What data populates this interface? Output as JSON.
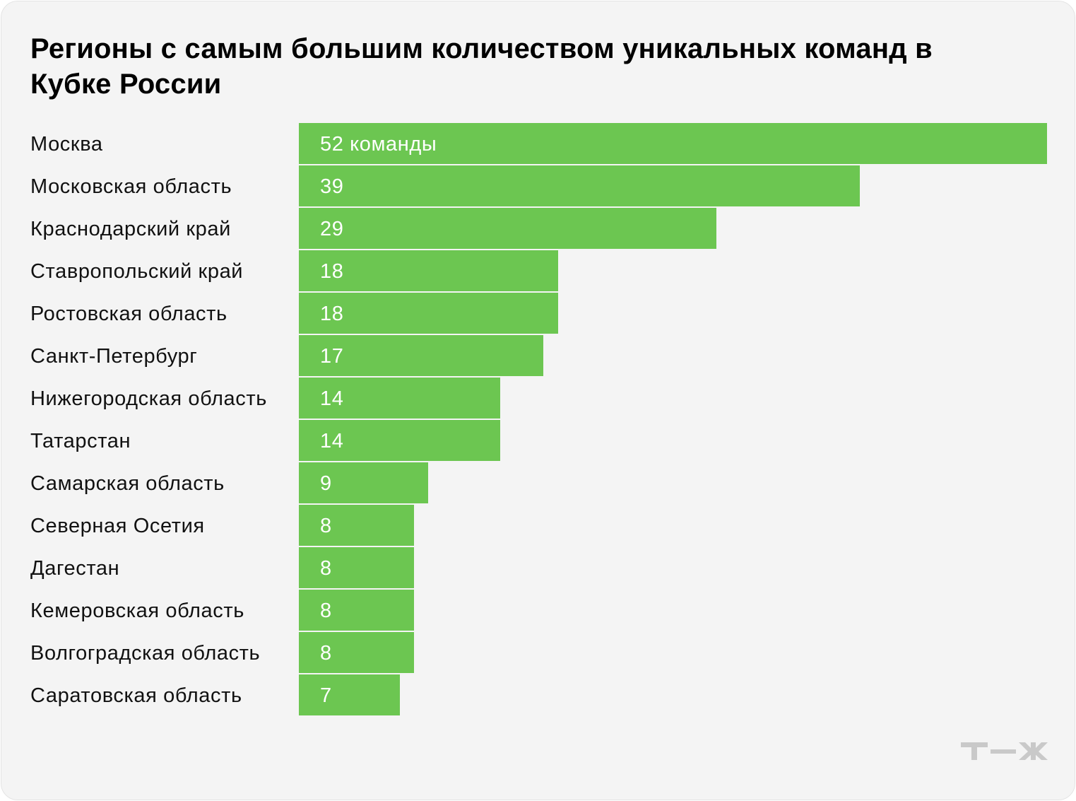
{
  "chart_data": {
    "type": "bar",
    "orientation": "horizontal",
    "title": "Регионы с самым большим количеством уникальных команд в Кубке России",
    "categories": [
      "Москва",
      "Московская область",
      "Краснодарский край",
      "Ставропольский край",
      "Ростовская область",
      "Санкт-Петербург",
      "Нижегородская область",
      "Татарстан",
      "Самарская область",
      "Северная Осетия",
      "Дагестан",
      "Кемеровская область",
      "Волгоградская область",
      "Саратовская область"
    ],
    "values": [
      52,
      39,
      29,
      18,
      18,
      17,
      14,
      14,
      9,
      8,
      8,
      8,
      8,
      7
    ],
    "value_labels": [
      "52 команды",
      "39",
      "29",
      "18",
      "18",
      "17",
      "14",
      "14",
      "9",
      "8",
      "8",
      "8",
      "8",
      "7"
    ],
    "xlim": [
      0,
      52
    ],
    "grid": false,
    "legend": "none"
  },
  "colors": {
    "bar": "#6cc651",
    "background": "#f4f4f4",
    "label_text": "#111111",
    "value_text": "#ffffff",
    "logo": "#c9c9c9"
  },
  "logo": {
    "name": "tzh-logo-icon",
    "text": "Т—Ж"
  }
}
